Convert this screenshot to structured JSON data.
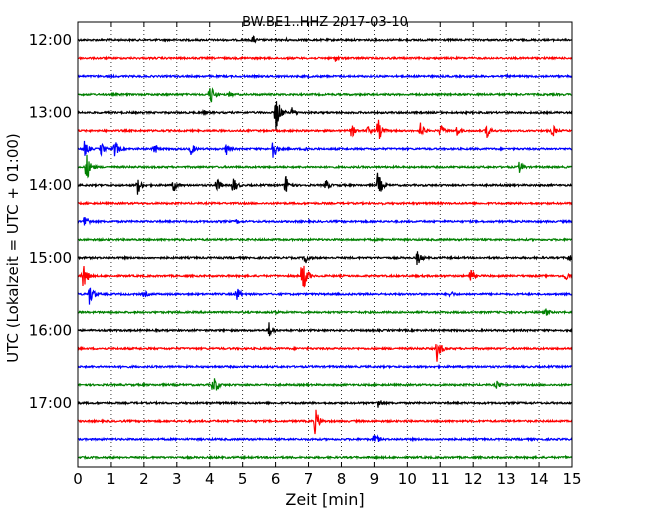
{
  "chart_data": {
    "type": "line",
    "title": "BW.BE1..HHZ 2017-03-10",
    "xlabel": "Zeit  [min]",
    "ylabel": "UTC (Lokalzeit = UTC + 01:00)",
    "xlim": [
      0,
      15
    ],
    "x_ticks": [
      "0",
      "1",
      "2",
      "3",
      "4",
      "5",
      "6",
      "7",
      "8",
      "9",
      "10",
      "11",
      "12",
      "13",
      "14",
      "15"
    ],
    "y_ticks": [
      "12:00",
      "13:00",
      "14:00",
      "15:00",
      "16:00",
      "17:00"
    ],
    "y_tick_trace_index": [
      0,
      4,
      8,
      12,
      16,
      20
    ],
    "trace_interval_minutes": 15,
    "trace_count": 24,
    "grid": "vertical dotted",
    "colors": [
      "#000000",
      "#ff0000",
      "#0000ff",
      "#008000"
    ],
    "series": [
      {
        "start": "12:00",
        "events": [
          [
            5.3,
            0.35
          ],
          [
            6.3,
            0.15
          ]
        ]
      },
      {
        "start": "12:15",
        "events": [
          [
            7.8,
            0.3
          ],
          [
            5.0,
            0.12
          ],
          [
            13.6,
            0.12
          ]
        ]
      },
      {
        "start": "12:30",
        "events": [
          [
            7.0,
            0.12
          ],
          [
            13.0,
            0.12
          ]
        ]
      },
      {
        "start": "12:45",
        "events": [
          [
            4.0,
            0.9
          ],
          [
            4.6,
            0.25
          ]
        ]
      },
      {
        "start": "13:00",
        "events": [
          [
            6.0,
            1.5
          ],
          [
            3.8,
            0.25
          ],
          [
            6.5,
            0.4
          ]
        ]
      },
      {
        "start": "13:15",
        "events": [
          [
            8.3,
            0.5
          ],
          [
            8.8,
            0.4
          ],
          [
            9.1,
            0.9
          ],
          [
            10.4,
            0.6
          ],
          [
            11.0,
            0.5
          ],
          [
            11.5,
            0.4
          ],
          [
            12.4,
            0.6
          ],
          [
            14.4,
            0.5
          ]
        ]
      },
      {
        "start": "13:30",
        "events": [
          [
            0.2,
            0.6
          ],
          [
            0.7,
            0.5
          ],
          [
            1.1,
            0.7
          ],
          [
            2.3,
            0.5
          ],
          [
            3.4,
            0.6
          ],
          [
            4.5,
            0.45
          ],
          [
            5.9,
            0.9
          ],
          [
            6.9,
            0.3
          ]
        ]
      },
      {
        "start": "13:45",
        "events": [
          [
            0.25,
            1.1
          ],
          [
            13.4,
            0.45
          ]
        ]
      },
      {
        "start": "14:00",
        "events": [
          [
            1.8,
            0.7
          ],
          [
            2.9,
            0.5
          ],
          [
            4.2,
            0.6
          ],
          [
            4.7,
            0.7
          ],
          [
            6.3,
            0.8
          ],
          [
            7.5,
            0.5
          ],
          [
            9.1,
            1.0
          ]
        ]
      },
      {
        "start": "14:15",
        "events": [
          [
            9.2,
            0.12
          ]
        ]
      },
      {
        "start": "14:30",
        "events": [
          [
            0.2,
            0.6
          ],
          [
            4.8,
            0.2
          ]
        ]
      },
      {
        "start": "14:45",
        "events": [
          [
            9.0,
            0.12
          ]
        ]
      },
      {
        "start": "15:00",
        "events": [
          [
            6.9,
            0.5
          ],
          [
            10.3,
            0.6
          ],
          [
            14.9,
            0.4
          ]
        ]
      },
      {
        "start": "15:15",
        "events": [
          [
            0.15,
            1.1
          ],
          [
            6.8,
            1.5
          ],
          [
            11.9,
            0.6
          ],
          [
            14.8,
            0.4
          ]
        ]
      },
      {
        "start": "15:30",
        "events": [
          [
            0.35,
            0.8
          ],
          [
            2.0,
            0.3
          ],
          [
            4.8,
            0.65
          ],
          [
            11.3,
            0.3
          ]
        ]
      },
      {
        "start": "15:45",
        "events": [
          [
            6.0,
            0.2
          ],
          [
            14.2,
            0.35
          ]
        ]
      },
      {
        "start": "16:00",
        "events": [
          [
            5.8,
            0.6
          ]
        ]
      },
      {
        "start": "16:15",
        "events": [
          [
            10.9,
            0.9
          ]
        ]
      },
      {
        "start": "16:30",
        "events": [
          [
            1.3,
            0.12
          ]
        ]
      },
      {
        "start": "16:45",
        "events": [
          [
            4.1,
            0.9
          ],
          [
            12.7,
            0.35
          ]
        ]
      },
      {
        "start": "17:00",
        "events": [
          [
            9.1,
            0.5
          ]
        ]
      },
      {
        "start": "17:15",
        "events": [
          [
            7.2,
            0.95
          ]
        ]
      },
      {
        "start": "17:30",
        "events": [
          [
            9.0,
            0.5
          ],
          [
            11.1,
            0.2
          ]
        ]
      },
      {
        "start": "17:45",
        "events": [
          [
            14.8,
            0.12
          ]
        ]
      }
    ]
  }
}
